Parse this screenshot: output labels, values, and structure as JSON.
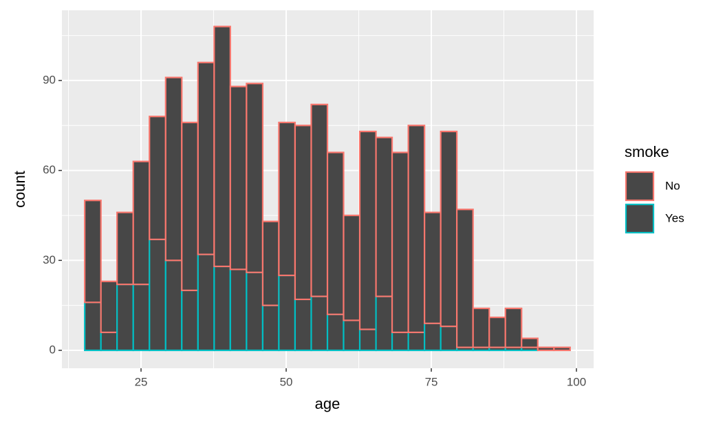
{
  "chart_data": {
    "type": "histogram",
    "x_label": "age",
    "y_label": "count",
    "legend_title": "smoke",
    "bins": [
      15.3,
      18.09,
      20.87,
      23.66,
      26.45,
      29.24,
      32.02,
      34.81,
      37.6,
      40.38,
      43.17,
      45.96,
      48.74,
      51.53,
      54.32,
      57.11,
      59.89,
      62.68,
      65.47,
      68.25,
      71.04,
      73.83,
      76.62,
      79.4,
      82.19,
      84.98,
      87.76,
      90.55,
      93.34,
      96.13,
      98.91
    ],
    "series": [
      {
        "name": "No",
        "color": "#F8766D",
        "values": [
          34,
          17,
          24,
          41,
          41,
          61,
          56,
          64,
          80,
          61,
          63,
          28,
          51,
          58,
          64,
          54,
          35,
          66,
          53,
          60,
          69,
          37,
          65,
          46,
          13,
          10,
          13,
          3,
          1,
          1
        ]
      },
      {
        "name": "Yes",
        "color": "#00BFC4",
        "values": [
          16,
          6,
          22,
          22,
          37,
          30,
          20,
          32,
          28,
          27,
          26,
          15,
          25,
          17,
          18,
          12,
          10,
          7,
          18,
          6,
          6,
          9,
          8,
          1,
          1,
          1,
          1,
          1,
          0,
          0
        ]
      }
    ],
    "fill": "#474747",
    "stacked": true,
    "xlim": [
      11.37,
      102.96
    ],
    "xticks": [
      25,
      50,
      75,
      100
    ],
    "ylim": [
      -5.97,
      113.4
    ],
    "yticks": [
      0,
      30,
      60,
      90
    ],
    "grid": true,
    "legend_position": "right"
  }
}
